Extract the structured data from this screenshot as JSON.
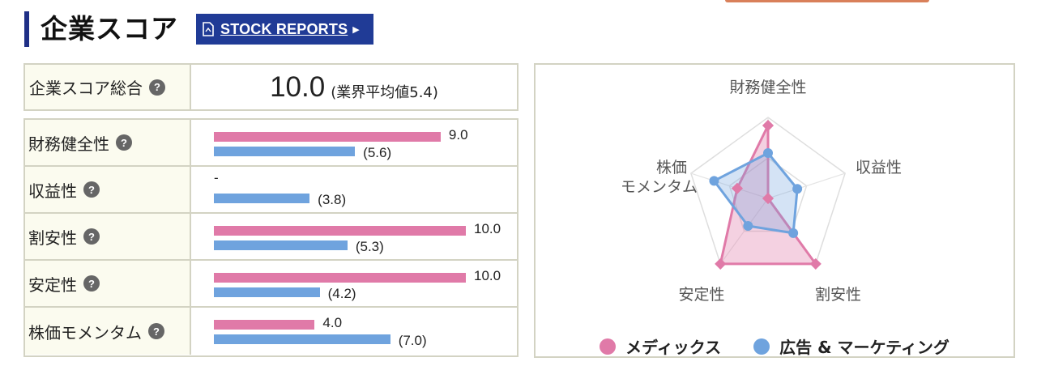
{
  "header": {
    "title": "企業スコア",
    "stock_reports_label": "STOCK REPORTS"
  },
  "total": {
    "label": "企業スコア総合",
    "value": "10.0",
    "industry_avg": "(業界平均値5.4)"
  },
  "help_glyph": "?",
  "metrics": [
    {
      "label": "財務健全性",
      "company": 9.0,
      "company_text": "9.0",
      "industry": 5.6,
      "industry_text": "(5.6)"
    },
    {
      "label": "収益性",
      "company": null,
      "company_text": "-",
      "industry": 3.8,
      "industry_text": "(3.8)"
    },
    {
      "label": "割安性",
      "company": 10.0,
      "company_text": "10.0",
      "industry": 5.3,
      "industry_text": "(5.3)"
    },
    {
      "label": "安定性",
      "company": 10.0,
      "company_text": "10.0",
      "industry": 4.2,
      "industry_text": "(4.2)"
    },
    {
      "label": "株価モメンタム",
      "company": 4.0,
      "company_text": "4.0",
      "industry": 7.0,
      "industry_text": "(7.0)"
    }
  ],
  "chart_data": {
    "type": "radar",
    "axes": [
      "財務健全性",
      "収益性",
      "割安性",
      "安定性",
      "株価\nモメンタム"
    ],
    "max": 10,
    "series": [
      {
        "name": "メディックス",
        "color": "#e07aa8",
        "values": [
          9.0,
          0,
          10.0,
          10.0,
          4.0
        ]
      },
      {
        "name": "広告 & マーケティング",
        "color": "#6fa3de",
        "values": [
          5.6,
          3.8,
          5.3,
          4.2,
          7.0
        ]
      }
    ],
    "legend": "bottom"
  },
  "colors": {
    "accent": "#1f2f86",
    "button": "#203b96",
    "company": "#e07aa8",
    "industry": "#6fa3de",
    "border": "#d3d3c3",
    "label_bg": "#fbfbef"
  }
}
